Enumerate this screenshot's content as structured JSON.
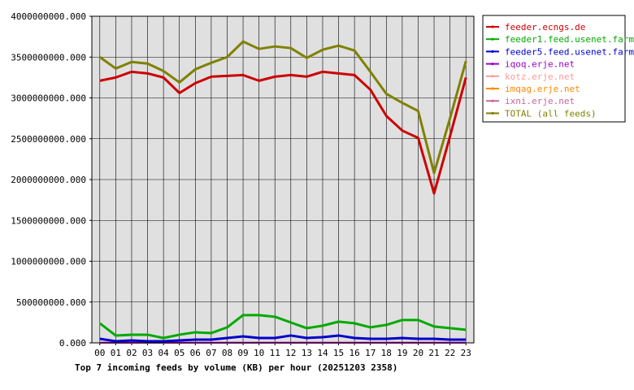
{
  "chart_data": {
    "type": "line",
    "title": "Top 7 incoming feeds by volume (KB) per hour (20251203 2358)",
    "xlabel": "",
    "ylabel": "",
    "categories": [
      "00",
      "01",
      "02",
      "03",
      "04",
      "05",
      "06",
      "07",
      "08",
      "09",
      "10",
      "11",
      "12",
      "13",
      "14",
      "15",
      "16",
      "17",
      "18",
      "19",
      "20",
      "21",
      "22",
      "23"
    ],
    "ylim": [
      0,
      4000000000
    ],
    "yticks": [
      0,
      500000000,
      1000000000,
      1500000000,
      2000000000,
      2500000000,
      3000000000,
      3500000000,
      4000000000
    ],
    "ytick_labels": [
      "0.000",
      "500000000.000",
      "1000000000.000",
      "1500000000.000",
      "2000000000.000",
      "2500000000.000",
      "3000000000.000",
      "3500000000.000",
      "4000000000.000"
    ],
    "grid": true,
    "legend_position": "right",
    "series": [
      {
        "name": "feeder.ecngs.de",
        "color": "#cc0000",
        "values": [
          3210000000,
          3250000000,
          3320000000,
          3300000000,
          3250000000,
          3060000000,
          3180000000,
          3260000000,
          3270000000,
          3280000000,
          3210000000,
          3260000000,
          3280000000,
          3260000000,
          3320000000,
          3300000000,
          3280000000,
          3100000000,
          2780000000,
          2600000000,
          2510000000,
          1830000000,
          2530000000,
          3250000000
        ]
      },
      {
        "name": "feeder1.feed.usenet.farm",
        "color": "#00aa00",
        "values": [
          240000000,
          90000000,
          100000000,
          100000000,
          60000000,
          100000000,
          130000000,
          120000000,
          190000000,
          340000000,
          340000000,
          320000000,
          250000000,
          180000000,
          210000000,
          260000000,
          240000000,
          190000000,
          220000000,
          280000000,
          280000000,
          200000000,
          180000000,
          160000000
        ]
      },
      {
        "name": "feeder5.feed.usenet.farm",
        "color": "#0000cc",
        "values": [
          50000000,
          20000000,
          30000000,
          20000000,
          20000000,
          30000000,
          40000000,
          40000000,
          60000000,
          80000000,
          60000000,
          60000000,
          90000000,
          60000000,
          70000000,
          90000000,
          60000000,
          50000000,
          50000000,
          60000000,
          50000000,
          50000000,
          40000000,
          40000000
        ]
      },
      {
        "name": "iqoq.erje.net",
        "color": "#9900cc",
        "values": [
          3000000,
          3000000,
          3000000,
          3000000,
          3000000,
          3000000,
          3000000,
          3000000,
          3000000,
          3000000,
          3000000,
          3000000,
          3000000,
          3000000,
          3000000,
          3000000,
          3000000,
          3000000,
          3000000,
          3000000,
          3000000,
          3000000,
          3000000,
          3000000
        ]
      },
      {
        "name": "kotz.erje.net",
        "color": "#ff9999",
        "values": [
          2000000,
          2000000,
          2000000,
          2000000,
          2000000,
          2000000,
          2000000,
          2000000,
          2000000,
          2000000,
          2000000,
          2000000,
          2000000,
          2000000,
          2000000,
          2000000,
          2000000,
          2000000,
          2000000,
          2000000,
          2000000,
          2000000,
          2000000,
          2000000
        ]
      },
      {
        "name": "imqag.erje.net",
        "color": "#ff8800",
        "values": [
          1000000,
          1000000,
          1000000,
          1000000,
          1000000,
          1000000,
          1000000,
          1000000,
          1000000,
          1000000,
          1000000,
          1000000,
          1000000,
          1000000,
          1000000,
          1000000,
          1000000,
          1000000,
          1000000,
          1000000,
          1000000,
          1000000,
          1000000,
          1000000
        ]
      },
      {
        "name": "ixni.erje.net",
        "color": "#cc6699",
        "values": [
          1000000,
          1000000,
          1000000,
          1000000,
          1000000,
          1000000,
          1000000,
          1000000,
          1000000,
          1000000,
          1000000,
          1000000,
          1000000,
          1000000,
          1000000,
          1000000,
          1000000,
          1000000,
          1000000,
          1000000,
          1000000,
          1000000,
          1000000,
          1000000
        ]
      },
      {
        "name": "TOTAL (all feeds)",
        "color": "#808000",
        "values": [
          3500000000,
          3360000000,
          3440000000,
          3420000000,
          3330000000,
          3190000000,
          3350000000,
          3430000000,
          3500000000,
          3690000000,
          3600000000,
          3630000000,
          3610000000,
          3490000000,
          3590000000,
          3640000000,
          3580000000,
          3320000000,
          3050000000,
          2940000000,
          2840000000,
          2080000000,
          2750000000,
          3450000000
        ]
      }
    ]
  }
}
